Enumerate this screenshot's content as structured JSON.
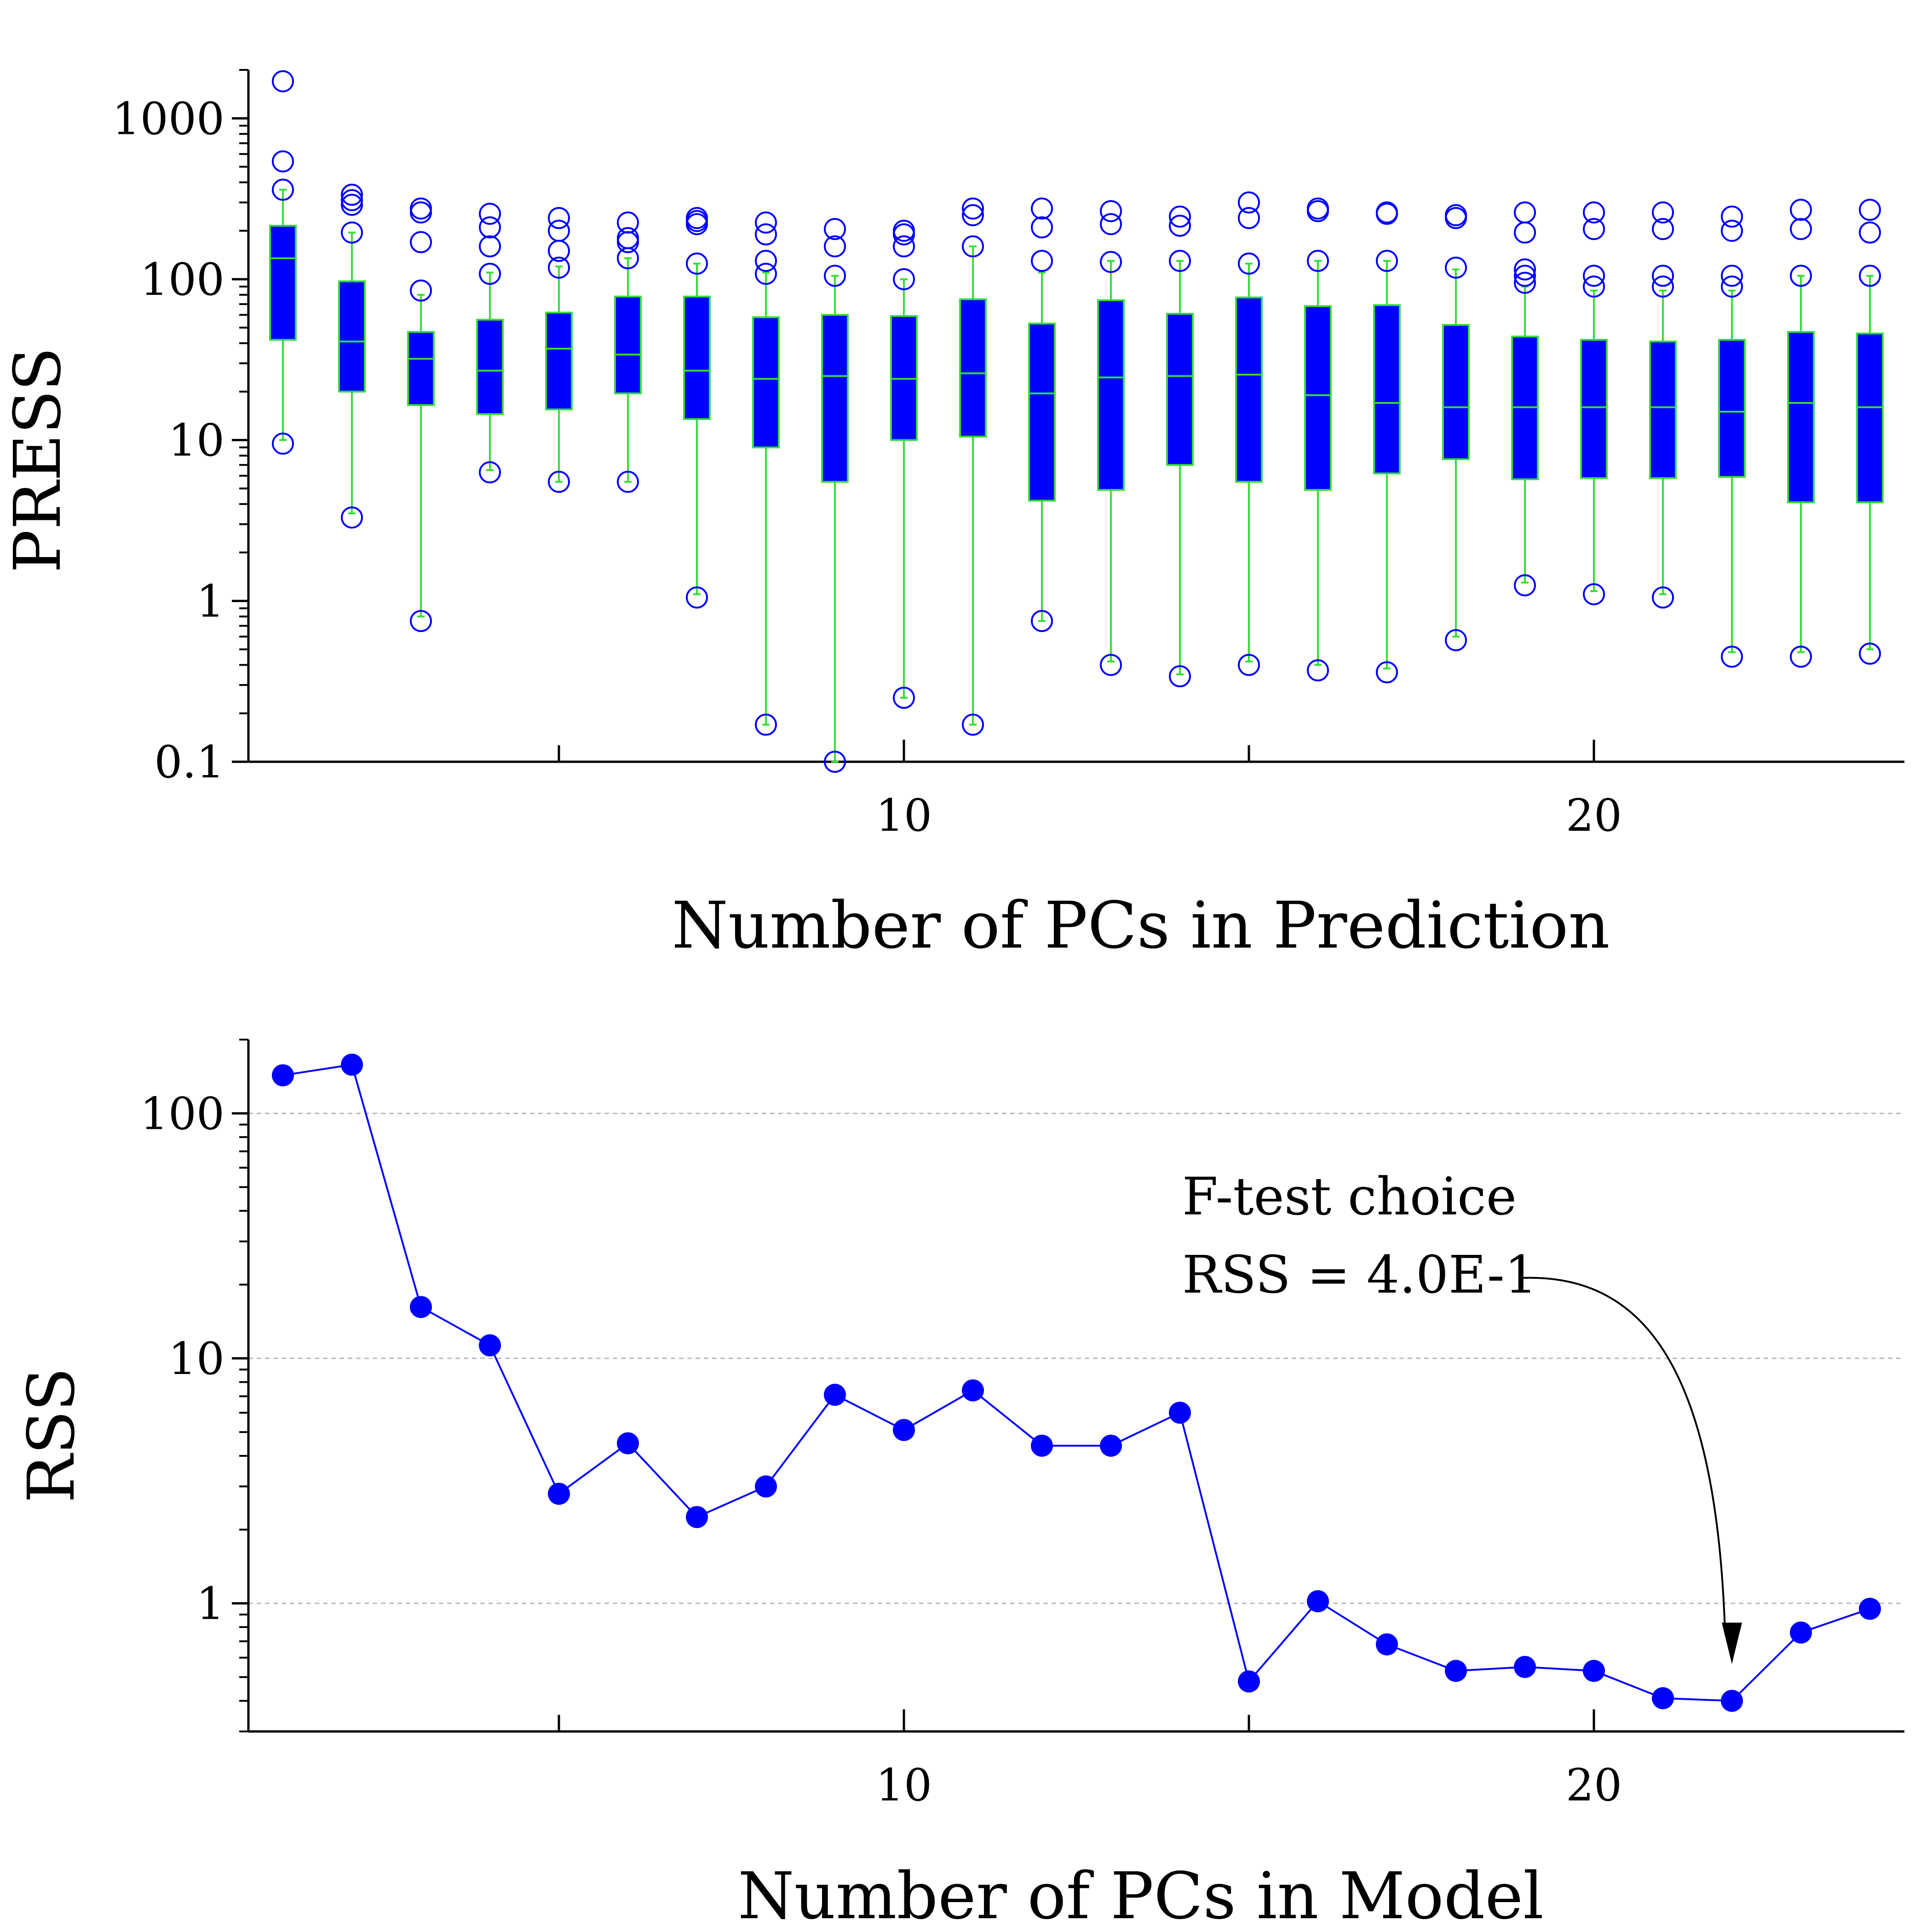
{
  "colors": {
    "box_fill": "#0000ff",
    "whisker": "#33dd33",
    "marker": "#0000ff",
    "line": "#0000ff",
    "grid": "#bbbbbb",
    "axis": "#000000"
  },
  "chart_data": [
    {
      "type": "box",
      "title": "",
      "xlabel": "Number of PCs in Prediction",
      "ylabel": "PRESS",
      "yscale": "log",
      "ylim": [
        0.1,
        2000
      ],
      "xlim": [
        0.5,
        24.5
      ],
      "y_ticks": [
        {
          "v": 0.1,
          "label": "0.1"
        },
        {
          "v": 1,
          "label": "1"
        },
        {
          "v": 10,
          "label": "10"
        },
        {
          "v": 100,
          "label": "100"
        },
        {
          "v": 1000,
          "label": "1000"
        }
      ],
      "x_ticks": [
        {
          "v": 10,
          "label": "10"
        },
        {
          "v": 20,
          "label": "20"
        }
      ],
      "x_minor_ticks": [
        5,
        15
      ],
      "boxes": [
        {
          "x": 1,
          "whisker_low": 10,
          "q1": 42,
          "median": 135,
          "q3": 215,
          "whisker_high": 360,
          "outliers": [
            9.5,
            360,
            540,
            1700
          ]
        },
        {
          "x": 2,
          "whisker_low": 3.5,
          "q1": 20,
          "median": 41,
          "q3": 97,
          "whisker_high": 195,
          "outliers": [
            3.3,
            195,
            290,
            310,
            335
          ]
        },
        {
          "x": 3,
          "whisker_low": 0.8,
          "q1": 16.5,
          "median": 32,
          "q3": 47,
          "whisker_high": 80,
          "outliers": [
            0.75,
            85,
            170,
            260,
            275
          ]
        },
        {
          "x": 4,
          "whisker_low": 6.5,
          "q1": 14.5,
          "median": 27,
          "q3": 56,
          "whisker_high": 110,
          "outliers": [
            6.3,
            108,
            160,
            210,
            255
          ]
        },
        {
          "x": 5,
          "whisker_low": 5.5,
          "q1": 15.5,
          "median": 37,
          "q3": 62,
          "whisker_high": 120,
          "outliers": [
            5.5,
            118,
            150,
            200,
            240
          ]
        },
        {
          "x": 6,
          "whisker_low": 5.5,
          "q1": 19.5,
          "median": 34,
          "q3": 78,
          "whisker_high": 135,
          "outliers": [
            5.5,
            135,
            170,
            180,
            225
          ]
        },
        {
          "x": 7,
          "whisker_low": 1.1,
          "q1": 13.5,
          "median": 27,
          "q3": 78,
          "whisker_high": 125,
          "outliers": [
            1.05,
            125,
            220,
            230,
            240
          ]
        },
        {
          "x": 8,
          "whisker_low": 0.17,
          "q1": 9,
          "median": 24,
          "q3": 58,
          "whisker_high": 110,
          "outliers": [
            0.17,
            108,
            130,
            190,
            225
          ]
        },
        {
          "x": 9,
          "whisker_low": 0.1,
          "q1": 5.5,
          "median": 25,
          "q3": 60,
          "whisker_high": 105,
          "outliers": [
            0.1,
            105,
            160,
            205
          ]
        },
        {
          "x": 10,
          "whisker_low": 0.25,
          "q1": 10,
          "median": 24,
          "q3": 59,
          "whisker_high": 100,
          "outliers": [
            0.25,
            100,
            160,
            190,
            200
          ]
        },
        {
          "x": 11,
          "whisker_low": 0.17,
          "q1": 10.5,
          "median": 26,
          "q3": 75,
          "whisker_high": 160,
          "outliers": [
            0.17,
            160,
            250,
            275
          ]
        },
        {
          "x": 12,
          "whisker_low": 0.75,
          "q1": 4.2,
          "median": 19.5,
          "q3": 53,
          "whisker_high": 110,
          "outliers": [
            0.75,
            130,
            210,
            275
          ]
        },
        {
          "x": 13,
          "whisker_low": 0.42,
          "q1": 4.9,
          "median": 24.5,
          "q3": 74,
          "whisker_high": 130,
          "outliers": [
            0.4,
            128,
            220,
            265
          ]
        },
        {
          "x": 14,
          "whisker_low": 0.35,
          "q1": 7,
          "median": 25,
          "q3": 61,
          "whisker_high": 130,
          "outliers": [
            0.34,
            130,
            215,
            245
          ]
        },
        {
          "x": 15,
          "whisker_low": 0.42,
          "q1": 5.5,
          "median": 25.5,
          "q3": 77,
          "whisker_high": 125,
          "outliers": [
            0.4,
            125,
            240,
            300
          ]
        },
        {
          "x": 16,
          "whisker_low": 0.4,
          "q1": 4.9,
          "median": 19,
          "q3": 68,
          "whisker_high": 130,
          "outliers": [
            0.37,
            130,
            265,
            275
          ]
        },
        {
          "x": 17,
          "whisker_low": 0.38,
          "q1": 6.2,
          "median": 17,
          "q3": 69,
          "whisker_high": 130,
          "outliers": [
            0.36,
            130,
            255,
            260
          ]
        },
        {
          "x": 18,
          "whisker_low": 0.6,
          "q1": 7.6,
          "median": 16,
          "q3": 52,
          "whisker_high": 115,
          "outliers": [
            0.57,
            118,
            240,
            250
          ]
        },
        {
          "x": 19,
          "whisker_low": 1.3,
          "q1": 5.7,
          "median": 16,
          "q3": 44,
          "whisker_high": 90,
          "outliers": [
            1.25,
            95,
            105,
            115,
            195,
            260
          ]
        },
        {
          "x": 20,
          "whisker_low": 1.15,
          "q1": 5.8,
          "median": 16,
          "q3": 42,
          "whisker_high": 85,
          "outliers": [
            1.1,
            90,
            105,
            205,
            260
          ]
        },
        {
          "x": 21,
          "whisker_low": 1.1,
          "q1": 5.8,
          "median": 16,
          "q3": 41,
          "whisker_high": 85,
          "outliers": [
            1.05,
            90,
            105,
            205,
            260
          ]
        },
        {
          "x": 22,
          "whisker_low": 0.48,
          "q1": 5.9,
          "median": 15,
          "q3": 42,
          "whisker_high": 85,
          "outliers": [
            0.45,
            90,
            105,
            200,
            245
          ]
        },
        {
          "x": 23,
          "whisker_low": 0.48,
          "q1": 4.1,
          "median": 17,
          "q3": 47,
          "whisker_high": 105,
          "outliers": [
            0.45,
            105,
            205,
            270
          ]
        },
        {
          "x": 24,
          "whisker_low": 0.5,
          "q1": 4.1,
          "median": 16,
          "q3": 46,
          "whisker_high": 105,
          "outliers": [
            0.47,
            105,
            195,
            270
          ]
        }
      ]
    },
    {
      "type": "line",
      "title": "",
      "xlabel": "Number of PCs in Model",
      "ylabel": "RSS",
      "yscale": "log",
      "ylim": [
        0.3,
        200
      ],
      "xlim": [
        0.5,
        24.5
      ],
      "grid": true,
      "y_ticks": [
        {
          "v": 1,
          "label": "1"
        },
        {
          "v": 10,
          "label": "10"
        },
        {
          "v": 100,
          "label": "100"
        }
      ],
      "x_ticks": [
        {
          "v": 10,
          "label": "10"
        },
        {
          "v": 20,
          "label": "20"
        }
      ],
      "x_minor_ticks": [
        5,
        15
      ],
      "x": [
        1,
        2,
        3,
        4,
        5,
        6,
        7,
        8,
        9,
        10,
        11,
        12,
        13,
        14,
        15,
        16,
        17,
        18,
        19,
        20,
        21,
        22,
        23,
        24
      ],
      "y": [
        143,
        158,
        16.2,
        11.3,
        2.8,
        4.5,
        2.25,
        3.0,
        7.1,
        5.1,
        7.4,
        4.4,
        4.4,
        6.0,
        0.48,
        1.02,
        0.68,
        0.53,
        0.55,
        0.53,
        0.41,
        0.4,
        0.76,
        0.95
      ],
      "annotation": {
        "line1": "F-test choice",
        "line2": "RSS = 4.0E-1",
        "target_x": 22,
        "target_y": 0.4
      }
    }
  ]
}
